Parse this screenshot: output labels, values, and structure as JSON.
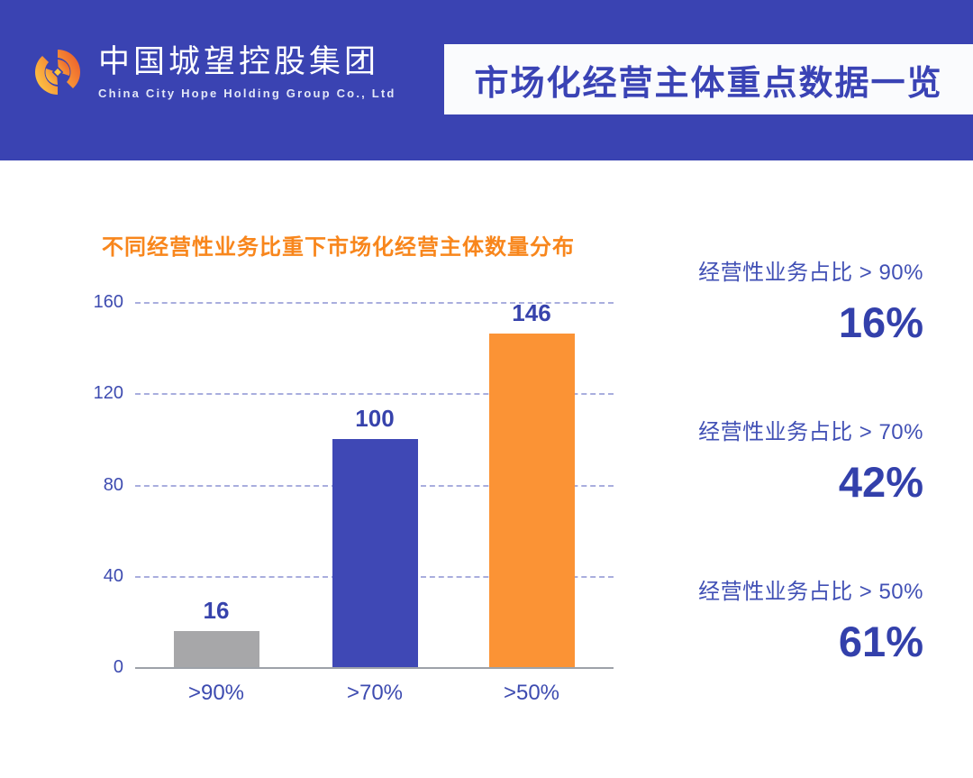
{
  "header": {
    "brand": {
      "name_zh": "中国城望控股集团",
      "name_en": "China City Hope Holding Group Co., Ltd"
    },
    "title": "市场化经营主体重点数据一览"
  },
  "chart_data": {
    "type": "bar",
    "title": "不同经营性业务比重下市场化经营主体数量分布",
    "categories": [
      ">90%",
      ">70%",
      ">50%"
    ],
    "values": [
      16,
      100,
      146
    ],
    "value_labels": [
      "16",
      "100",
      "146"
    ],
    "bar_colors": [
      "#A7A7A9",
      "#3F48B5",
      "#FB9335"
    ],
    "y_ticks": [
      0,
      40,
      80,
      120,
      160
    ],
    "ylim": [
      0,
      160
    ],
    "xlabel": "",
    "ylabel": "",
    "grid": "horizontal-dashed",
    "legend": "none"
  },
  "stats": [
    {
      "label": "经营性业务占比 > 90%",
      "value": "16%"
    },
    {
      "label": "经营性业务占比 > 70%",
      "value": "42%"
    },
    {
      "label": "经营性业务占比 > 50%",
      "value": "61%"
    }
  ],
  "icons": {
    "logo": "company-swirl-logo"
  },
  "colors": {
    "header_bg": "#3A43B2",
    "title_text": "#3A43B5",
    "chart_title": "#F8861C",
    "axis_text": "#3D4BB0",
    "value_label": "#3743AC",
    "gridline": "#A9AEDE",
    "baseline": "#9DA2A9",
    "stat_label": "#4150B5",
    "stat_value": "#3340AB",
    "bar_gray": "#A7A7A9",
    "bar_blue": "#3F48B5",
    "bar_orange": "#FB9335",
    "logo_orange": "#F2752C",
    "logo_yellow": "#FFD24A"
  }
}
